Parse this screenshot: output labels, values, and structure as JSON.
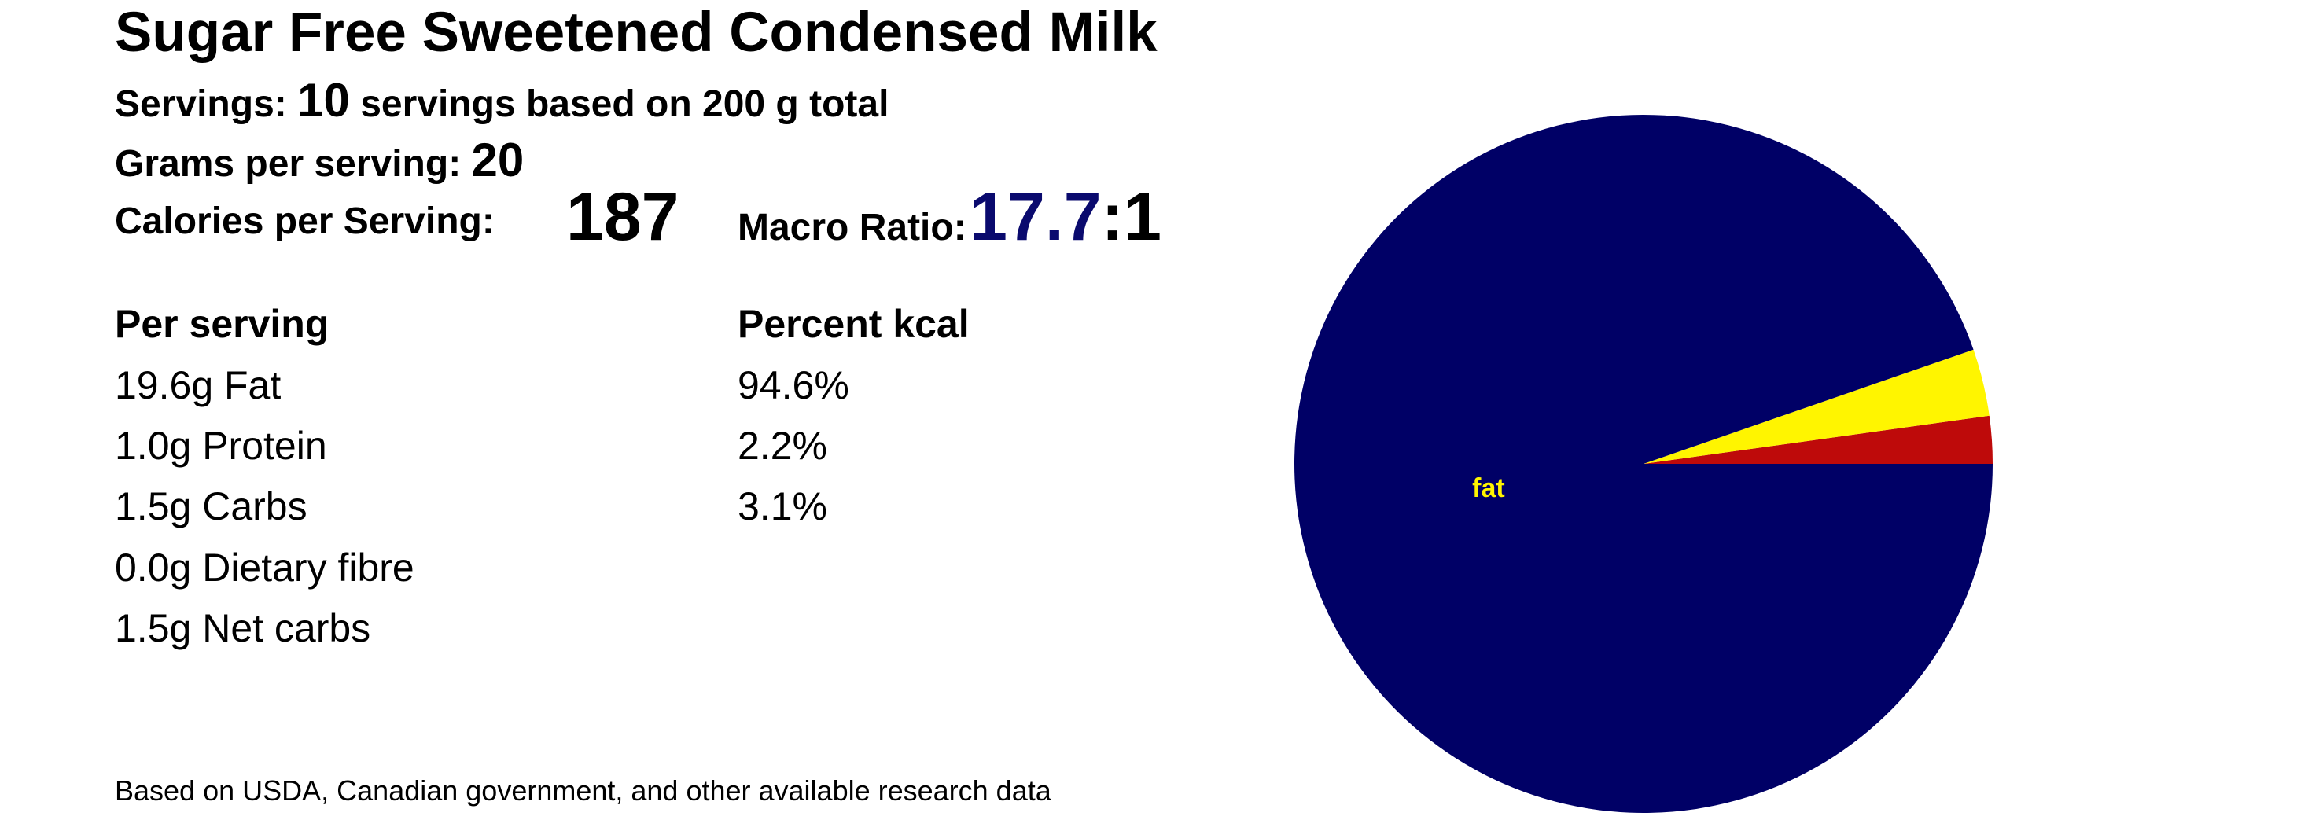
{
  "title": "Sugar Free Sweetened Condensed Milk",
  "servings": {
    "label": "Servings:",
    "value": "10",
    "suffix": "servings based on 200 g total"
  },
  "grams_per_serving": {
    "label": "Grams per serving:",
    "value": "20"
  },
  "calories": {
    "label": "Calories per Serving:",
    "value": "187"
  },
  "macro_ratio": {
    "label": "Macro Ratio:",
    "value": "17.7",
    "suffix": ":1",
    "value_color": "#0a0a6e"
  },
  "per_serving": {
    "heading": "Per serving",
    "rows": [
      "19.6g Fat",
      "1.0g Protein",
      "1.5g Carbs",
      "0.0g Dietary fibre",
      "1.5g Net carbs"
    ]
  },
  "percent_kcal": {
    "heading": "Percent kcal",
    "rows": [
      "94.6%",
      "2.2%",
      "3.1%"
    ]
  },
  "footnote": "Based on USDA, Canadian government, and other available research data",
  "chart_data": {
    "type": "pie",
    "slices": [
      {
        "name": "protein",
        "value": 2.2,
        "color": "#be0a0a",
        "show_label": false
      },
      {
        "name": "carbs",
        "value": 3.1,
        "color": "#fff500",
        "show_label": false
      },
      {
        "name": "fat",
        "value": 94.6,
        "color": "#000066",
        "show_label": true
      }
    ],
    "start_angle_deg": 0,
    "direction": "counterclockwise",
    "label_color": "#fff500"
  }
}
